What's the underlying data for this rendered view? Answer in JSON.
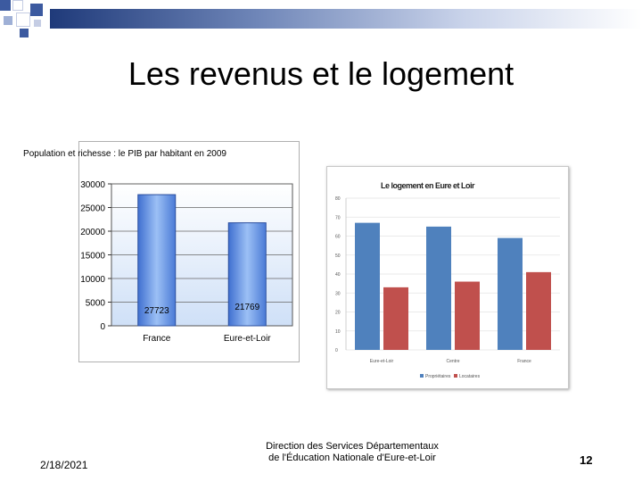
{
  "slide": {
    "title": "Les revenus et le logement",
    "date": "2/18/2021",
    "footer_line1": "Direction des Services Départementaux",
    "footer_line2": "de l'Éducation Nationale d'Eure-et-Loir",
    "page_number": "12"
  },
  "chart_data": [
    {
      "type": "bar",
      "title": "Population et richesse : le PIB par habitant en 2009",
      "categories": [
        "France",
        "Eure-et-Loir"
      ],
      "values": [
        27723,
        21769
      ],
      "data_labels": [
        "27723",
        "21769"
      ],
      "yticks": [
        "30000",
        "25000",
        "20000",
        "15000",
        "10000",
        "5000",
        "0"
      ],
      "ylim": [
        0,
        30000
      ],
      "grid": true,
      "bar_color": "#5b8fe0"
    },
    {
      "type": "bar",
      "title": "Le logement en Eure et Loir",
      "categories": [
        "Eure-et-Loir",
        "Centre",
        "France"
      ],
      "series": [
        {
          "name": "Propriétaires",
          "values": [
            67,
            65,
            59
          ],
          "color": "#4f81bd"
        },
        {
          "name": "Locataires",
          "values": [
            33,
            36,
            41
          ],
          "color": "#c0504d"
        }
      ],
      "yticks": [
        "80",
        "70",
        "60",
        "50",
        "40",
        "30",
        "20",
        "10",
        "0"
      ],
      "ylim": [
        0,
        80
      ],
      "legend": "bottom"
    }
  ]
}
